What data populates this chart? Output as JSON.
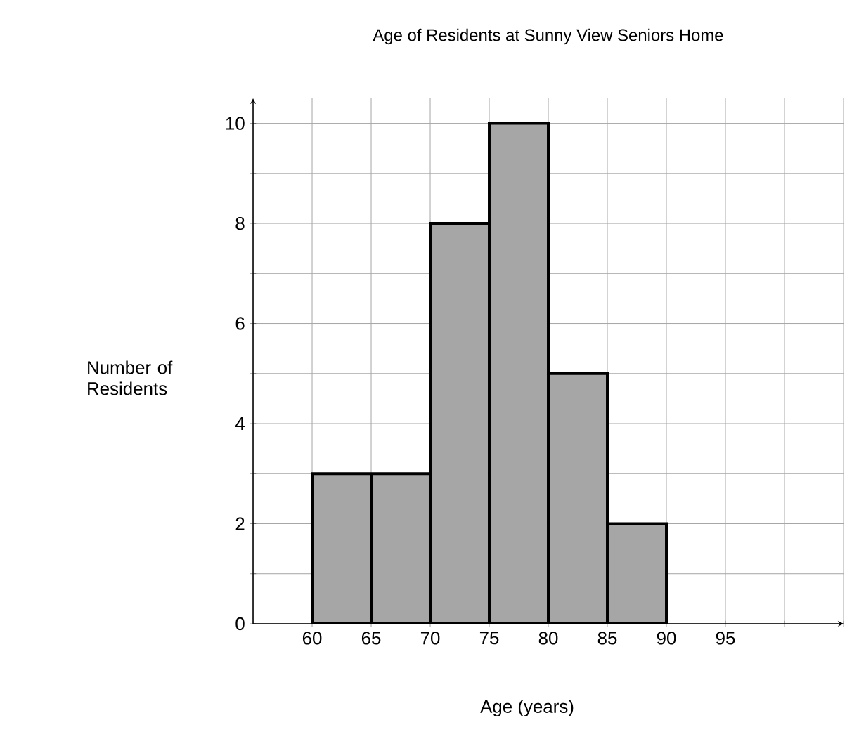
{
  "chart_data": {
    "type": "histogram",
    "title": "Age of Residents at Sunny View Seniors Home",
    "xlabel": "Age (years)",
    "ylabel": "Number of Residents",
    "bins": [
      60,
      65,
      70,
      75,
      80,
      85,
      90
    ],
    "values": [
      3,
      3,
      8,
      10,
      5,
      2
    ],
    "color": "#a6a6a6",
    "xlim": [
      55,
      105
    ],
    "ylim": [
      0,
      10.5
    ],
    "xticks": [
      60,
      65,
      70,
      75,
      80,
      85,
      90,
      95,
      {
        "value": 100,
        "label": null
      },
      {
        "value": 105,
        "label": null
      }
    ],
    "yticks": [
      0,
      {
        "value": 1,
        "label": null
      },
      2,
      {
        "value": 3,
        "label": null
      },
      4,
      {
        "value": 5,
        "label": null
      },
      6,
      {
        "value": 7,
        "label": null
      },
      8,
      {
        "value": 9,
        "label": null
      },
      10
    ],
    "grid": true
  }
}
